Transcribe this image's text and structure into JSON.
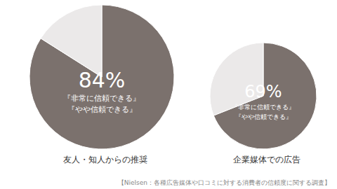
{
  "chart_data": [
    {
      "type": "pie",
      "title": "友人・知人からの推奨",
      "categories": [
        "『非常に信頼できる』\n『やや信頼できる』",
        null
      ],
      "values": [
        84,
        16
      ],
      "value_labels": [
        "84%",
        null
      ],
      "colors": [
        "#7b716d",
        "#ebe9e9"
      ],
      "data_labels": true
    },
    {
      "type": "pie",
      "title": "企業媒体での広告",
      "categories": [
        "『非常に信頼できる』\n『やや信頼できる』",
        null
      ],
      "values": [
        69,
        31
      ],
      "value_labels": [
        "69%",
        null
      ],
      "colors": [
        "#7b716d",
        "#ebe9e9"
      ],
      "data_labels": true
    }
  ],
  "source": "【Nielsen：各種広告媒体や口コミに対する消費者の信頼度に関する調査】"
}
